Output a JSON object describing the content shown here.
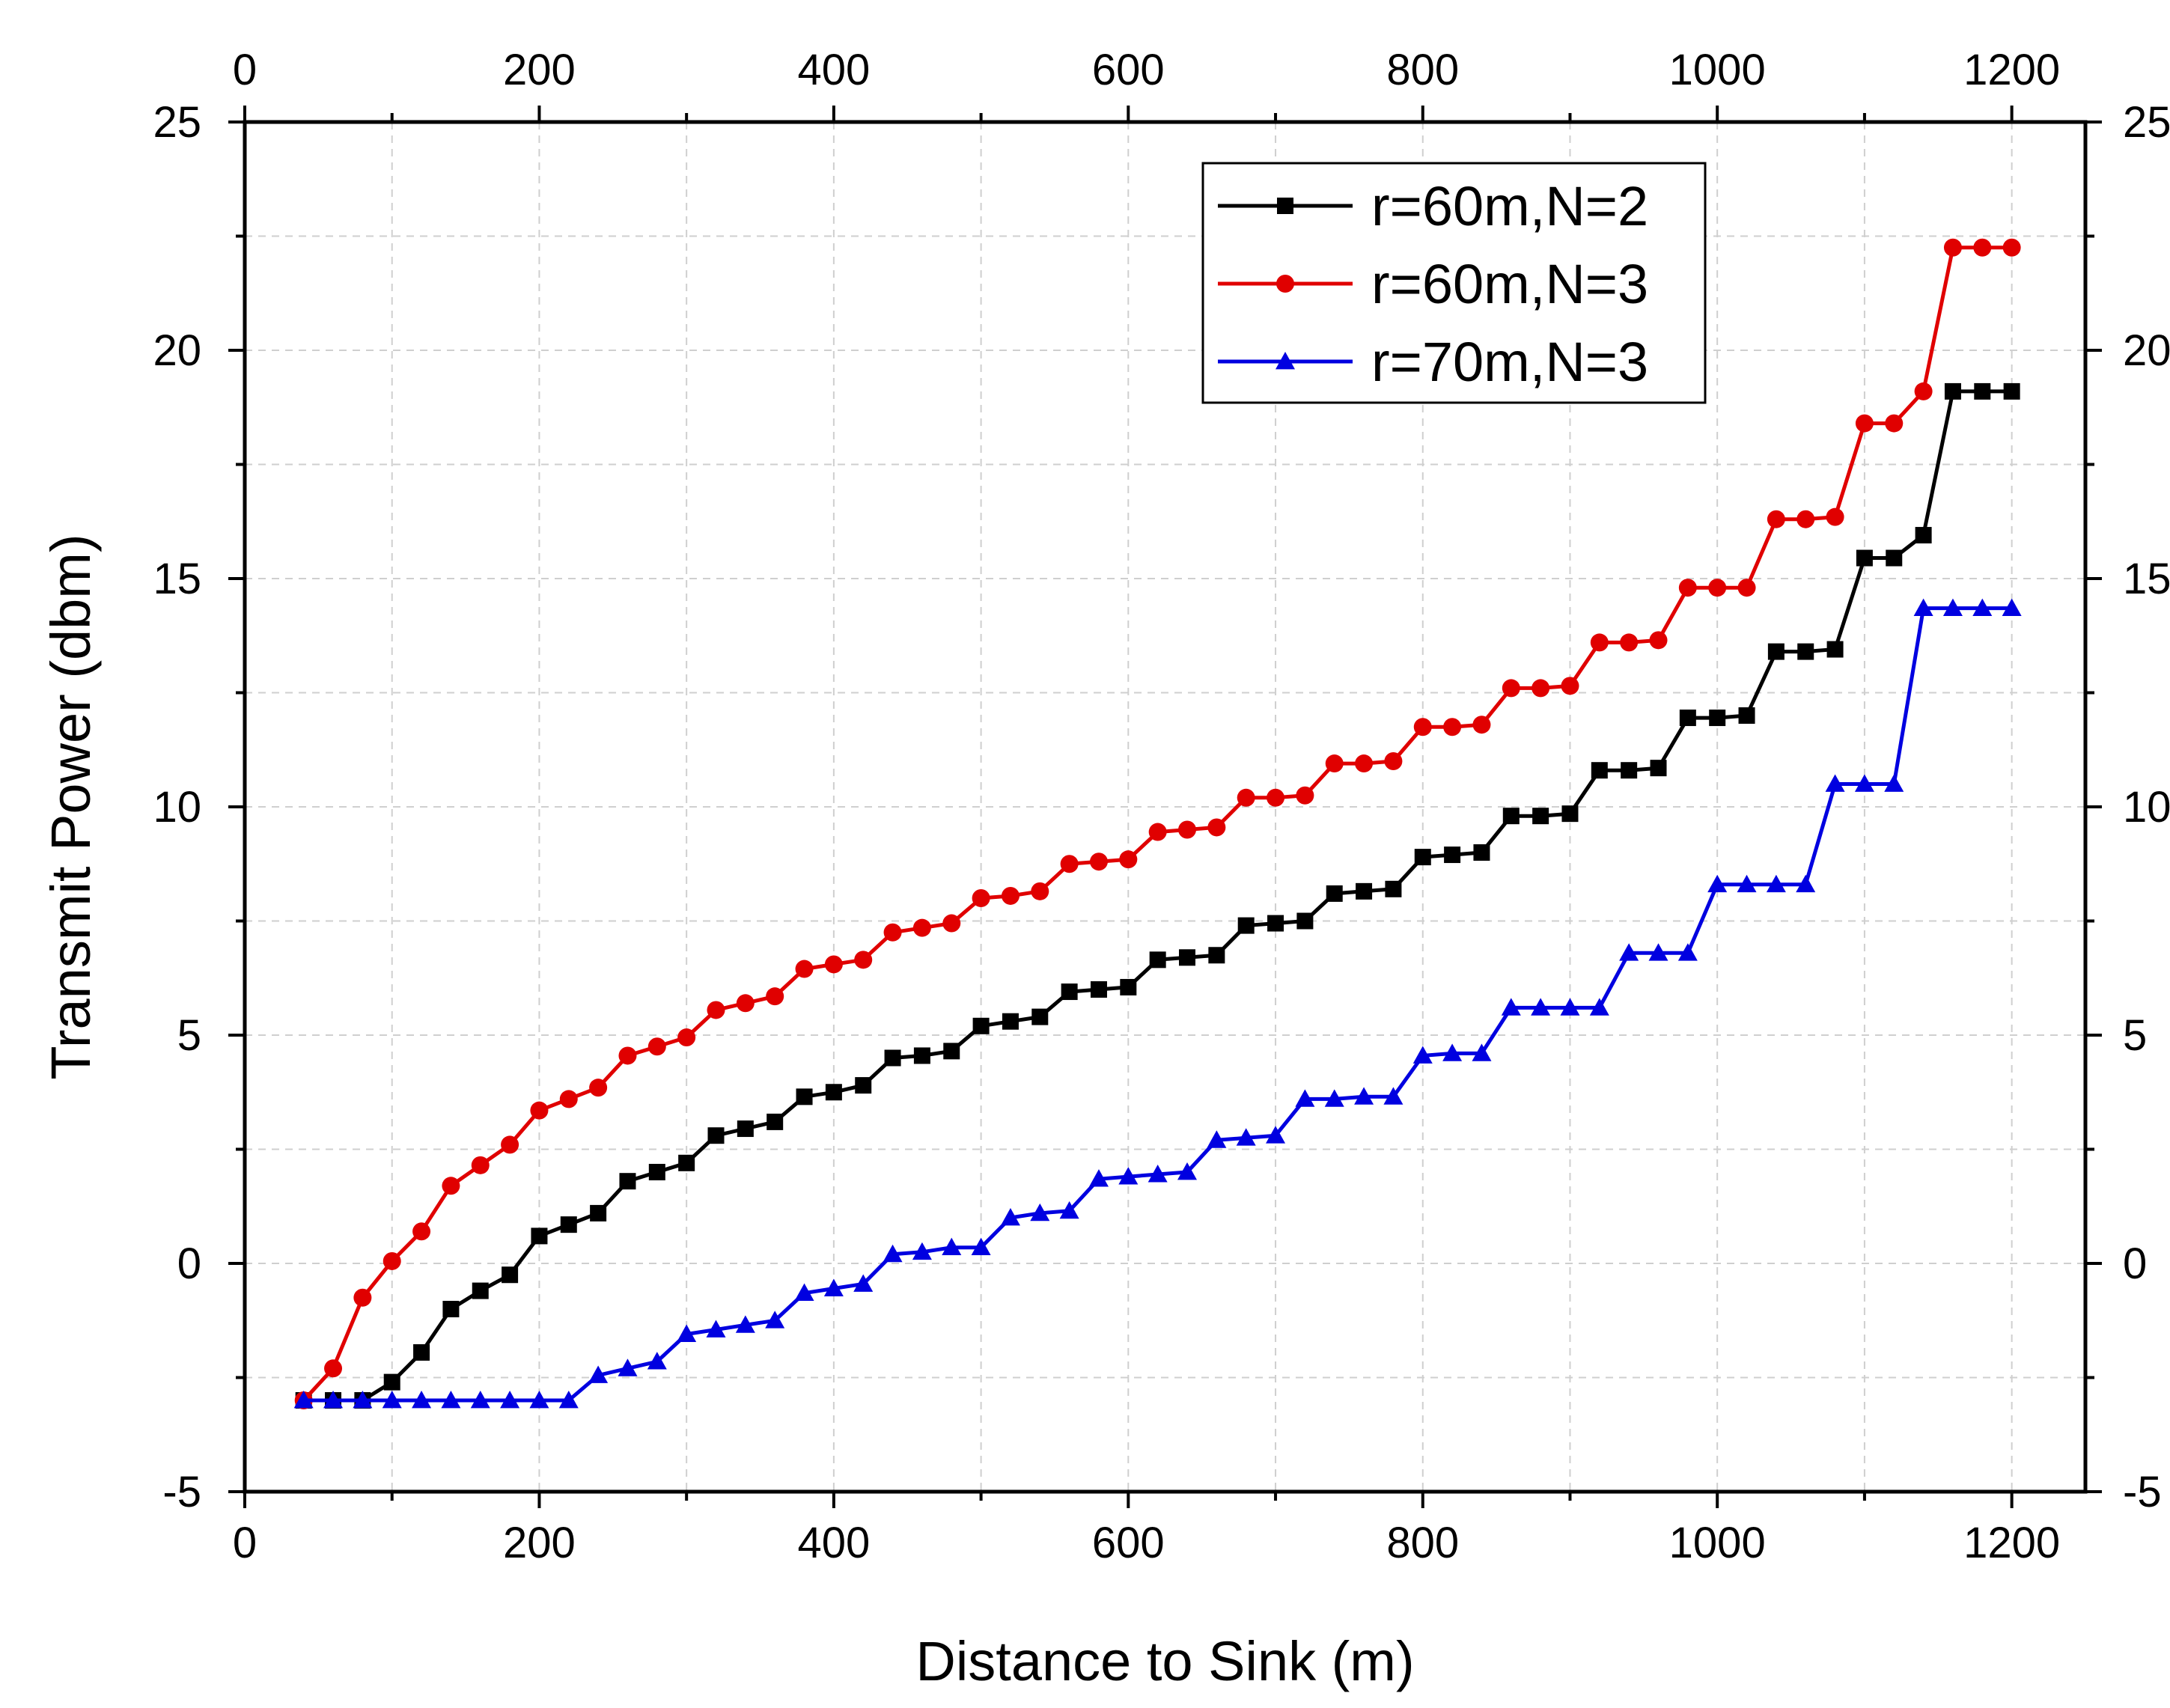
{
  "chart_data": {
    "type": "line",
    "title": "",
    "xlabel": "Distance to Sink (m)",
    "ylabel": "Transmit Power (dbm)",
    "xlim": [
      0,
      1250
    ],
    "ylim": [
      -5,
      25
    ],
    "x_ticks": [
      "0",
      "200",
      "400",
      "600",
      "800",
      "1000",
      "1200"
    ],
    "x_tick_values": [
      0,
      200,
      400,
      600,
      800,
      1000,
      1200
    ],
    "y_ticks": [
      "-5",
      "0",
      "5",
      "10",
      "15",
      "20",
      "25"
    ],
    "y_tick_values": [
      -5,
      0,
      5,
      10,
      15,
      20,
      25
    ],
    "top_axis_mirrored": true,
    "right_axis_mirrored": true,
    "grid": true,
    "legend_position": "top-right",
    "series": [
      {
        "name": "r=60m,N=2",
        "color": "#000000",
        "marker": "square",
        "points": [
          [
            40,
            -3
          ],
          [
            60,
            -3
          ],
          [
            80,
            -3
          ],
          [
            100,
            -2.6
          ],
          [
            120,
            -1.95
          ],
          [
            140,
            -1.0
          ],
          [
            160,
            -0.6
          ],
          [
            180,
            -0.25
          ],
          [
            200,
            0.6
          ],
          [
            220,
            0.85
          ],
          [
            240,
            1.1
          ],
          [
            260,
            1.8
          ],
          [
            280,
            2.0
          ],
          [
            300,
            2.2
          ],
          [
            320,
            2.8
          ],
          [
            340,
            2.95
          ],
          [
            360,
            3.1
          ],
          [
            380,
            3.65
          ],
          [
            400,
            3.75
          ],
          [
            420,
            3.9
          ],
          [
            440,
            4.5
          ],
          [
            460,
            4.55
          ],
          [
            480,
            4.65
          ],
          [
            500,
            5.2
          ],
          [
            520,
            5.3
          ],
          [
            540,
            5.4
          ],
          [
            560,
            5.95
          ],
          [
            580,
            6.0
          ],
          [
            600,
            6.05
          ],
          [
            620,
            6.65
          ],
          [
            640,
            6.7
          ],
          [
            660,
            6.75
          ],
          [
            680,
            7.4
          ],
          [
            700,
            7.45
          ],
          [
            720,
            7.5
          ],
          [
            740,
            8.1
          ],
          [
            760,
            8.15
          ],
          [
            780,
            8.2
          ],
          [
            800,
            8.9
          ],
          [
            820,
            8.95
          ],
          [
            840,
            9.0
          ],
          [
            860,
            9.8
          ],
          [
            880,
            9.8
          ],
          [
            900,
            9.85
          ],
          [
            920,
            10.8
          ],
          [
            940,
            10.8
          ],
          [
            960,
            10.85
          ],
          [
            980,
            11.95
          ],
          [
            1000,
            11.95
          ],
          [
            1020,
            12.0
          ],
          [
            1040,
            13.4
          ],
          [
            1060,
            13.4
          ],
          [
            1080,
            13.45
          ],
          [
            1100,
            15.45
          ],
          [
            1120,
            15.45
          ],
          [
            1140,
            15.95
          ],
          [
            1160,
            19.1
          ],
          [
            1180,
            19.1
          ],
          [
            1200,
            19.1
          ]
        ]
      },
      {
        "name": "r=60m,N=3",
        "color": "#e00000",
        "marker": "circle",
        "points": [
          [
            40,
            -3
          ],
          [
            60,
            -2.3
          ],
          [
            80,
            -0.75
          ],
          [
            100,
            0.05
          ],
          [
            120,
            0.7
          ],
          [
            140,
            1.7
          ],
          [
            160,
            2.15
          ],
          [
            180,
            2.6
          ],
          [
            200,
            3.35
          ],
          [
            220,
            3.6
          ],
          [
            240,
            3.85
          ],
          [
            260,
            4.55
          ],
          [
            280,
            4.75
          ],
          [
            300,
            4.95
          ],
          [
            320,
            5.55
          ],
          [
            340,
            5.7
          ],
          [
            360,
            5.85
          ],
          [
            380,
            6.45
          ],
          [
            400,
            6.55
          ],
          [
            420,
            6.65
          ],
          [
            440,
            7.25
          ],
          [
            460,
            7.35
          ],
          [
            480,
            7.45
          ],
          [
            500,
            8.0
          ],
          [
            520,
            8.05
          ],
          [
            540,
            8.15
          ],
          [
            560,
            8.75
          ],
          [
            580,
            8.8
          ],
          [
            600,
            8.85
          ],
          [
            620,
            9.45
          ],
          [
            640,
            9.5
          ],
          [
            660,
            9.55
          ],
          [
            680,
            10.2
          ],
          [
            700,
            10.2
          ],
          [
            720,
            10.25
          ],
          [
            740,
            10.95
          ],
          [
            760,
            10.95
          ],
          [
            780,
            11.0
          ],
          [
            800,
            11.75
          ],
          [
            820,
            11.75
          ],
          [
            840,
            11.8
          ],
          [
            860,
            12.6
          ],
          [
            880,
            12.6
          ],
          [
            900,
            12.65
          ],
          [
            920,
            13.6
          ],
          [
            940,
            13.6
          ],
          [
            960,
            13.65
          ],
          [
            980,
            14.8
          ],
          [
            1000,
            14.8
          ],
          [
            1020,
            14.8
          ],
          [
            1040,
            16.3
          ],
          [
            1060,
            16.3
          ],
          [
            1080,
            16.35
          ],
          [
            1100,
            18.4
          ],
          [
            1120,
            18.4
          ],
          [
            1140,
            19.1
          ],
          [
            1160,
            22.25
          ],
          [
            1180,
            22.25
          ],
          [
            1200,
            22.25
          ]
        ]
      },
      {
        "name": "r=70m,N=3",
        "color": "#0000e0",
        "marker": "triangle",
        "points": [
          [
            40,
            -3
          ],
          [
            60,
            -3
          ],
          [
            80,
            -3
          ],
          [
            100,
            -3
          ],
          [
            120,
            -3
          ],
          [
            140,
            -3
          ],
          [
            160,
            -3
          ],
          [
            180,
            -3
          ],
          [
            200,
            -3
          ],
          [
            220,
            -3
          ],
          [
            240,
            -2.45
          ],
          [
            260,
            -2.3
          ],
          [
            280,
            -2.15
          ],
          [
            300,
            -1.55
          ],
          [
            320,
            -1.45
          ],
          [
            340,
            -1.35
          ],
          [
            360,
            -1.25
          ],
          [
            380,
            -0.65
          ],
          [
            400,
            -0.55
          ],
          [
            420,
            -0.45
          ],
          [
            440,
            0.2
          ],
          [
            460,
            0.25
          ],
          [
            480,
            0.35
          ],
          [
            500,
            0.35
          ],
          [
            520,
            1.0
          ],
          [
            540,
            1.1
          ],
          [
            560,
            1.15
          ],
          [
            580,
            1.85
          ],
          [
            600,
            1.9
          ],
          [
            620,
            1.95
          ],
          [
            640,
            2.0
          ],
          [
            660,
            2.7
          ],
          [
            680,
            2.75
          ],
          [
            700,
            2.8
          ],
          [
            720,
            3.6
          ],
          [
            740,
            3.6
          ],
          [
            760,
            3.65
          ],
          [
            780,
            3.65
          ],
          [
            800,
            4.55
          ],
          [
            820,
            4.6
          ],
          [
            840,
            4.6
          ],
          [
            860,
            5.6
          ],
          [
            880,
            5.6
          ],
          [
            900,
            5.6
          ],
          [
            920,
            5.6
          ],
          [
            940,
            6.8
          ],
          [
            960,
            6.8
          ],
          [
            980,
            6.8
          ],
          [
            1000,
            8.3
          ],
          [
            1020,
            8.3
          ],
          [
            1040,
            8.3
          ],
          [
            1060,
            8.3
          ],
          [
            1080,
            10.5
          ],
          [
            1100,
            10.5
          ],
          [
            1120,
            10.5
          ],
          [
            1140,
            14.35
          ],
          [
            1160,
            14.35
          ],
          [
            1180,
            14.35
          ],
          [
            1200,
            14.35
          ]
        ]
      }
    ]
  }
}
